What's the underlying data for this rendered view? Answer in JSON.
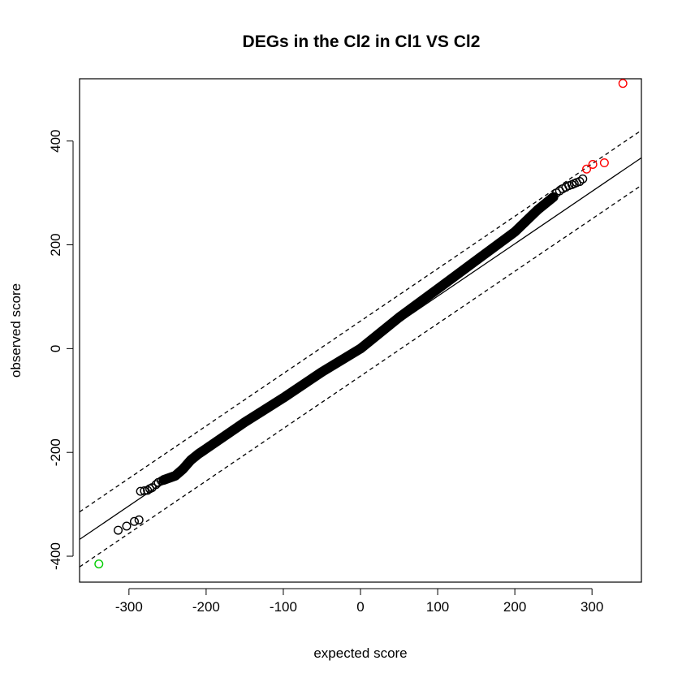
{
  "chart_data": {
    "type": "scatter",
    "title": "DEGs in the Cl2 in Cl1 VS Cl2",
    "xlabel": "expected score",
    "ylabel": "observed score",
    "xlim": [
      -364,
      364
    ],
    "ylim": [
      -450,
      520
    ],
    "x_ticks": [
      -300,
      -200,
      -100,
      0,
      100,
      200,
      300
    ],
    "x_tick_labels": [
      "-300",
      "-200",
      "-100",
      "0",
      "100",
      "200",
      "300"
    ],
    "y_ticks": [
      -400,
      -200,
      0,
      200,
      400
    ],
    "y_tick_labels": [
      "-400",
      "-200",
      "0",
      "200",
      "400"
    ],
    "grid": false,
    "reference_lines": [
      {
        "name": "",
        "style": "solid",
        "intercept": 0,
        "slope": 1.01
      },
      {
        "name": "",
        "style": "dashed",
        "intercept": 53,
        "slope": 1.01
      },
      {
        "name": "",
        "style": "dashed",
        "intercept": -53,
        "slope": 1.01
      }
    ],
    "colors": {
      "not_significant": "#000000",
      "significant_up": "#ff0000",
      "significant_down": "#00cd00"
    },
    "series": [
      {
        "name": "",
        "color": "#000000",
        "points": [
          [
            -314,
            -350
          ],
          [
            -303,
            -342
          ],
          [
            -293,
            -333
          ],
          [
            -287,
            -330
          ],
          [
            -285,
            -275
          ],
          [
            -280,
            -274
          ],
          [
            -276,
            -273
          ],
          [
            -273,
            -270
          ],
          [
            -270,
            -268
          ],
          [
            -265,
            -262
          ],
          [
            -262,
            -258
          ],
          [
            -258,
            -255
          ],
          [
            -254,
            -253
          ],
          [
            288,
            327
          ],
          [
            284,
            322
          ],
          [
            280,
            320
          ],
          [
            277,
            318
          ],
          [
            274,
            316
          ],
          [
            270,
            314
          ],
          [
            266,
            311
          ],
          [
            262,
            308
          ],
          [
            258,
            304
          ],
          [
            254,
            300
          ]
        ],
        "dense_curve": [
          [
            -255,
            -253
          ],
          [
            -240,
            -245
          ],
          [
            -230,
            -232
          ],
          [
            -220,
            -215
          ],
          [
            -210,
            -203
          ],
          [
            -200,
            -193
          ],
          [
            -150,
            -142
          ],
          [
            -100,
            -95
          ],
          [
            -50,
            -45
          ],
          [
            0,
            0
          ],
          [
            50,
            60
          ],
          [
            100,
            115
          ],
          [
            150,
            170
          ],
          [
            200,
            225
          ],
          [
            230,
            268
          ],
          [
            250,
            292
          ]
        ]
      },
      {
        "name": "",
        "color": "#ff0000",
        "points": [
          [
            340,
            511
          ],
          [
            316,
            358
          ],
          [
            301,
            355
          ],
          [
            293,
            346
          ]
        ]
      },
      {
        "name": "",
        "color": "#00cd00",
        "points": [
          [
            -339,
            -415
          ]
        ]
      }
    ]
  }
}
